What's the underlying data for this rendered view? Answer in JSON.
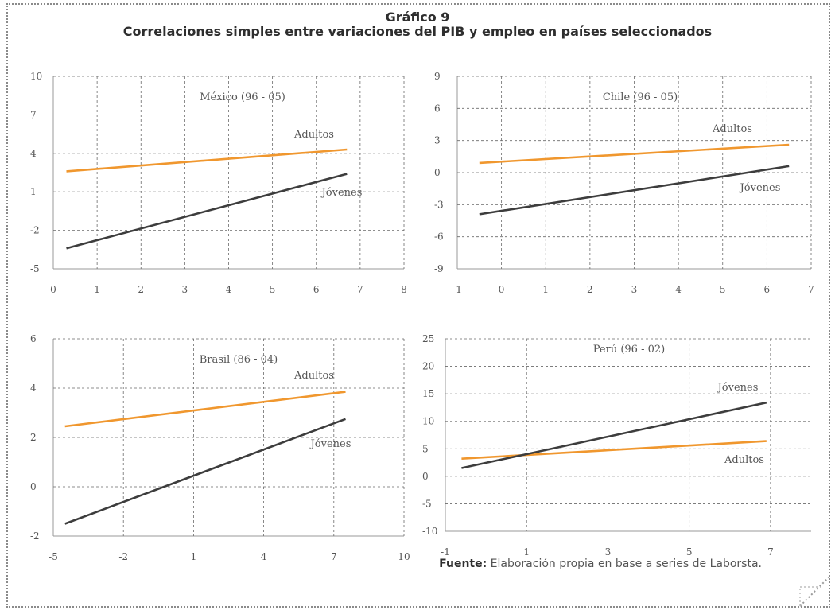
{
  "figure": {
    "title": "Gráfico 9",
    "subtitle": "Correlaciones simples entre variaciones del PIB y empleo en países seleccionados",
    "source_label": "Fuente:",
    "source_text": "Elaboración propia en base a series de Laborsta."
  },
  "colors": {
    "adultos": "#f0972e",
    "jovenes": "#3d3d3d",
    "grid": "#6a6a6a",
    "axis": "#9a9a9a",
    "text": "#555555"
  },
  "chart_data": [
    {
      "type": "line",
      "title": "México (96 - 05)",
      "xlim": [
        0,
        8
      ],
      "ylim": [
        -5,
        10
      ],
      "xticks": [
        0,
        1,
        2,
        3,
        4,
        5,
        6,
        7,
        8
      ],
      "yticks": [
        -5,
        -2,
        1,
        4,
        7,
        10
      ],
      "grid": true,
      "series": [
        {
          "name": "Adultos",
          "x": [
            0.3,
            6.7
          ],
          "y": [
            2.6,
            4.3
          ]
        },
        {
          "name": "Jóvenes",
          "x": [
            0.3,
            6.7
          ],
          "y": [
            -3.4,
            2.4
          ]
        }
      ]
    },
    {
      "type": "line",
      "title": "Chile (96 - 05)",
      "xlim": [
        -1,
        7
      ],
      "ylim": [
        -9,
        9
      ],
      "xticks": [
        -1,
        0,
        1,
        2,
        3,
        4,
        5,
        6,
        7
      ],
      "yticks": [
        -9,
        -6,
        -3,
        0,
        3,
        6,
        9
      ],
      "grid": true,
      "series": [
        {
          "name": "Adultos",
          "x": [
            -0.5,
            6.5
          ],
          "y": [
            0.9,
            2.6
          ]
        },
        {
          "name": "Jóvenes",
          "x": [
            -0.5,
            6.5
          ],
          "y": [
            -3.9,
            0.6
          ]
        }
      ]
    },
    {
      "type": "line",
      "title": "Brasil (86 - 04)",
      "xlim": [
        -5,
        10
      ],
      "ylim": [
        -2,
        6
      ],
      "xticks": [
        -5,
        -2,
        1,
        4,
        7,
        10
      ],
      "yticks": [
        -2,
        0,
        2,
        4,
        6
      ],
      "grid": true,
      "series": [
        {
          "name": "Adultos",
          "x": [
            -4.5,
            7.5
          ],
          "y": [
            2.45,
            3.85
          ]
        },
        {
          "name": "Jóvenes",
          "x": [
            -4.5,
            7.5
          ],
          "y": [
            -1.5,
            2.75
          ]
        }
      ]
    },
    {
      "type": "line",
      "title": "Perú (96 - 02)",
      "xlim": [
        -1,
        8
      ],
      "ylim": [
        -10,
        25
      ],
      "xticks": [
        -1,
        1,
        3,
        5,
        7
      ],
      "yticks": [
        -10,
        -5,
        0,
        5,
        10,
        15,
        20,
        25
      ],
      "grid": true,
      "series": [
        {
          "name": "Adultos",
          "x": [
            -0.6,
            6.9
          ],
          "y": [
            3.2,
            6.4
          ]
        },
        {
          "name": "Jóvenes",
          "x": [
            -0.6,
            6.9
          ],
          "y": [
            1.5,
            13.4
          ]
        }
      ]
    }
  ]
}
